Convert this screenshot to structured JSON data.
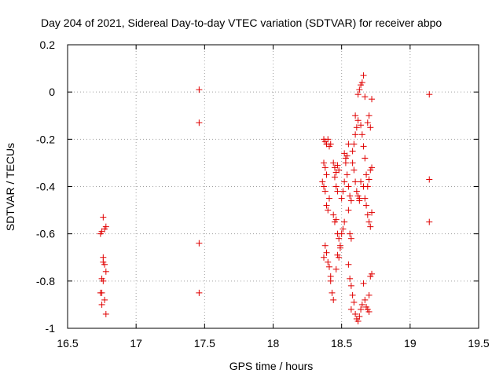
{
  "chart_data": {
    "type": "scatter",
    "title": "Day 204 of 2021, Sidereal Day-to-day VTEC variation (SDTVAR) for receiver abpo",
    "xlabel": "GPS time / hours",
    "ylabel": "SDTVAR / TECUs",
    "xlim": [
      16.5,
      19.5
    ],
    "ylim": [
      -1.0,
      0.2
    ],
    "grid": true,
    "marker": "+",
    "color": "#e00000",
    "x_ticks": [
      16.5,
      17,
      17.5,
      18,
      18.5,
      19,
      19.5
    ],
    "x_tick_labels": [
      "16.5",
      "17",
      "17.5",
      "18",
      "18.5",
      "19",
      "19.5"
    ],
    "y_ticks": [
      0.2,
      0,
      -0.2,
      -0.4,
      -0.6,
      -0.8,
      -1
    ],
    "y_tick_labels": [
      "0.2",
      "0",
      "-0.2",
      "-0.4",
      "-0.6",
      "-0.8",
      "-1"
    ],
    "series": [
      {
        "name": "SDTVAR",
        "points": [
          [
            16.74,
            -0.6
          ],
          [
            16.75,
            -0.59
          ],
          [
            16.76,
            -0.53
          ],
          [
            16.77,
            -0.58
          ],
          [
            16.78,
            -0.57
          ],
          [
            16.76,
            -0.7
          ],
          [
            16.76,
            -0.72
          ],
          [
            16.77,
            -0.73
          ],
          [
            16.78,
            -0.76
          ],
          [
            16.75,
            -0.79
          ],
          [
            16.76,
            -0.8
          ],
          [
            16.75,
            -0.85
          ],
          [
            16.74,
            -0.85
          ],
          [
            16.77,
            -0.88
          ],
          [
            16.75,
            -0.9
          ],
          [
            16.78,
            -0.94
          ],
          [
            17.46,
            0.01
          ],
          [
            17.46,
            -0.13
          ],
          [
            17.46,
            -0.64
          ],
          [
            17.46,
            -0.85
          ],
          [
            19.14,
            -0.01
          ],
          [
            19.14,
            -0.37
          ],
          [
            19.14,
            -0.55
          ],
          [
            18.37,
            -0.2
          ],
          [
            18.38,
            -0.21
          ],
          [
            18.39,
            -0.22
          ],
          [
            18.4,
            -0.2
          ],
          [
            18.41,
            -0.23
          ],
          [
            18.42,
            -0.22
          ],
          [
            18.37,
            -0.3
          ],
          [
            18.38,
            -0.32
          ],
          [
            18.39,
            -0.35
          ],
          [
            18.36,
            -0.38
          ],
          [
            18.37,
            -0.4
          ],
          [
            18.38,
            -0.42
          ],
          [
            18.39,
            -0.48
          ],
          [
            18.4,
            -0.5
          ],
          [
            18.41,
            -0.45
          ],
          [
            18.38,
            -0.65
          ],
          [
            18.37,
            -0.7
          ],
          [
            18.39,
            -0.68
          ],
          [
            18.4,
            -0.72
          ],
          [
            18.41,
            -0.74
          ],
          [
            18.42,
            -0.8
          ],
          [
            18.43,
            -0.85
          ],
          [
            18.44,
            -0.88
          ],
          [
            18.42,
            -0.78
          ],
          [
            18.44,
            -0.3
          ],
          [
            18.45,
            -0.32
          ],
          [
            18.46,
            -0.34
          ],
          [
            18.47,
            -0.31
          ],
          [
            18.48,
            -0.33
          ],
          [
            18.45,
            -0.36
          ],
          [
            18.46,
            -0.4
          ],
          [
            18.47,
            -0.42
          ],
          [
            18.44,
            -0.52
          ],
          [
            18.45,
            -0.55
          ],
          [
            18.46,
            -0.54
          ],
          [
            18.47,
            -0.6
          ],
          [
            18.48,
            -0.62
          ],
          [
            18.49,
            -0.66
          ],
          [
            18.47,
            -0.69
          ],
          [
            18.46,
            -0.75
          ],
          [
            18.48,
            -0.7
          ],
          [
            18.49,
            -0.65
          ],
          [
            18.5,
            -0.6
          ],
          [
            18.51,
            -0.58
          ],
          [
            18.52,
            -0.55
          ],
          [
            18.5,
            -0.45
          ],
          [
            18.51,
            -0.42
          ],
          [
            18.52,
            -0.38
          ],
          [
            18.53,
            -0.3
          ],
          [
            18.54,
            -0.27
          ],
          [
            18.52,
            -0.26
          ],
          [
            18.55,
            -0.22
          ],
          [
            18.53,
            -0.28
          ],
          [
            18.54,
            -0.35
          ],
          [
            18.55,
            -0.4
          ],
          [
            18.56,
            -0.44
          ],
          [
            18.57,
            -0.46
          ],
          [
            18.55,
            -0.5
          ],
          [
            18.56,
            -0.6
          ],
          [
            18.57,
            -0.62
          ],
          [
            18.55,
            -0.73
          ],
          [
            18.56,
            -0.79
          ],
          [
            18.57,
            -0.82
          ],
          [
            18.58,
            -0.86
          ],
          [
            18.59,
            -0.89
          ],
          [
            18.57,
            -0.92
          ],
          [
            18.6,
            -0.94
          ],
          [
            18.61,
            -0.96
          ],
          [
            18.62,
            -0.97
          ],
          [
            18.63,
            -0.95
          ],
          [
            18.64,
            -0.92
          ],
          [
            18.65,
            -0.9
          ],
          [
            18.58,
            -0.3
          ],
          [
            18.59,
            -0.33
          ],
          [
            18.6,
            -0.38
          ],
          [
            18.61,
            -0.42
          ],
          [
            18.62,
            -0.44
          ],
          [
            18.63,
            -0.46
          ],
          [
            18.58,
            -0.25
          ],
          [
            18.59,
            -0.22
          ],
          [
            18.6,
            -0.18
          ],
          [
            18.61,
            -0.15
          ],
          [
            18.62,
            -0.12
          ],
          [
            18.6,
            -0.1
          ],
          [
            18.62,
            -0.01
          ],
          [
            18.63,
            0.01
          ],
          [
            18.64,
            0.03
          ],
          [
            18.65,
            0.04
          ],
          [
            18.66,
            0.07
          ],
          [
            18.67,
            -0.02
          ],
          [
            18.64,
            -0.14
          ],
          [
            18.65,
            -0.18
          ],
          [
            18.66,
            -0.23
          ],
          [
            18.67,
            -0.28
          ],
          [
            18.68,
            -0.35
          ],
          [
            18.66,
            -0.4
          ],
          [
            18.67,
            -0.45
          ],
          [
            18.68,
            -0.48
          ],
          [
            18.69,
            -0.52
          ],
          [
            18.7,
            -0.55
          ],
          [
            18.71,
            -0.57
          ],
          [
            18.69,
            -0.4
          ],
          [
            18.7,
            -0.37
          ],
          [
            18.71,
            -0.33
          ],
          [
            18.72,
            -0.32
          ],
          [
            18.69,
            -0.13
          ],
          [
            18.7,
            -0.1
          ],
          [
            18.71,
            -0.15
          ],
          [
            18.72,
            -0.03
          ],
          [
            18.72,
            -0.51
          ],
          [
            18.71,
            -0.78
          ],
          [
            18.72,
            -0.77
          ],
          [
            18.7,
            -0.86
          ],
          [
            18.68,
            -0.91
          ],
          [
            18.69,
            -0.92
          ],
          [
            18.7,
            -0.93
          ],
          [
            18.67,
            -0.88
          ],
          [
            18.66,
            -0.81
          ],
          [
            18.63,
            -0.45
          ],
          [
            18.64,
            -0.38
          ]
        ]
      }
    ]
  }
}
